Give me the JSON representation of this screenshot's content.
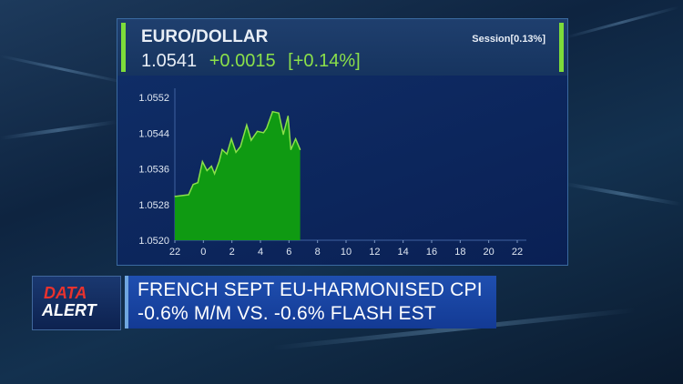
{
  "header": {
    "title": "EURO/DOLLAR",
    "price": "1.0541",
    "change": "+0.0015",
    "change_pct": "[+0.14%]",
    "session": "Session[0.13%]"
  },
  "colors": {
    "up": "#8be04a",
    "fill": "#0f9a12",
    "background": "#0d2a5e",
    "alert_red": "#e8322e"
  },
  "ticker": {
    "badge_line1": "DATA",
    "badge_line2": "ALERT",
    "line1": "FRENCH SEPT EU-HARMONISED CPI",
    "line2": "-0.6% M/M VS. -0.6% FLASH EST"
  },
  "chart_data": {
    "type": "area",
    "title": "EURO/DOLLAR",
    "ylim": [
      1.052,
      1.0552
    ],
    "yticks": [
      "1.0552",
      "1.0544",
      "1.0536",
      "1.0528",
      "1.0520"
    ],
    "xticks": [
      "22",
      "0",
      "2",
      "4",
      "6",
      "8",
      "10",
      "12",
      "14",
      "16",
      "18",
      "20",
      "22"
    ],
    "grid": false,
    "series": [
      {
        "x": [
          "22:00",
          "22:58",
          "23:17",
          "23:37",
          "23:56",
          "00:15",
          "00:34",
          "00:47",
          "01:06",
          "01:19",
          "01:39",
          "01:58",
          "02:17",
          "02:36",
          "03:02",
          "03:21",
          "03:47",
          "04:13",
          "04:26",
          "04:51",
          "05:17",
          "05:36",
          "05:56",
          "06:08",
          "06:28",
          "06:47"
        ],
        "y": [
          1.05298,
          1.05302,
          1.05325,
          1.05329,
          1.05376,
          1.05356,
          1.05366,
          1.05349,
          1.05376,
          1.05403,
          1.05393,
          1.05427,
          1.05397,
          1.0541,
          1.05458,
          1.05424,
          1.05444,
          1.05441,
          1.05451,
          1.05488,
          1.05485,
          1.05437,
          1.05478,
          1.05403,
          1.05427,
          1.05403
        ]
      }
    ]
  }
}
